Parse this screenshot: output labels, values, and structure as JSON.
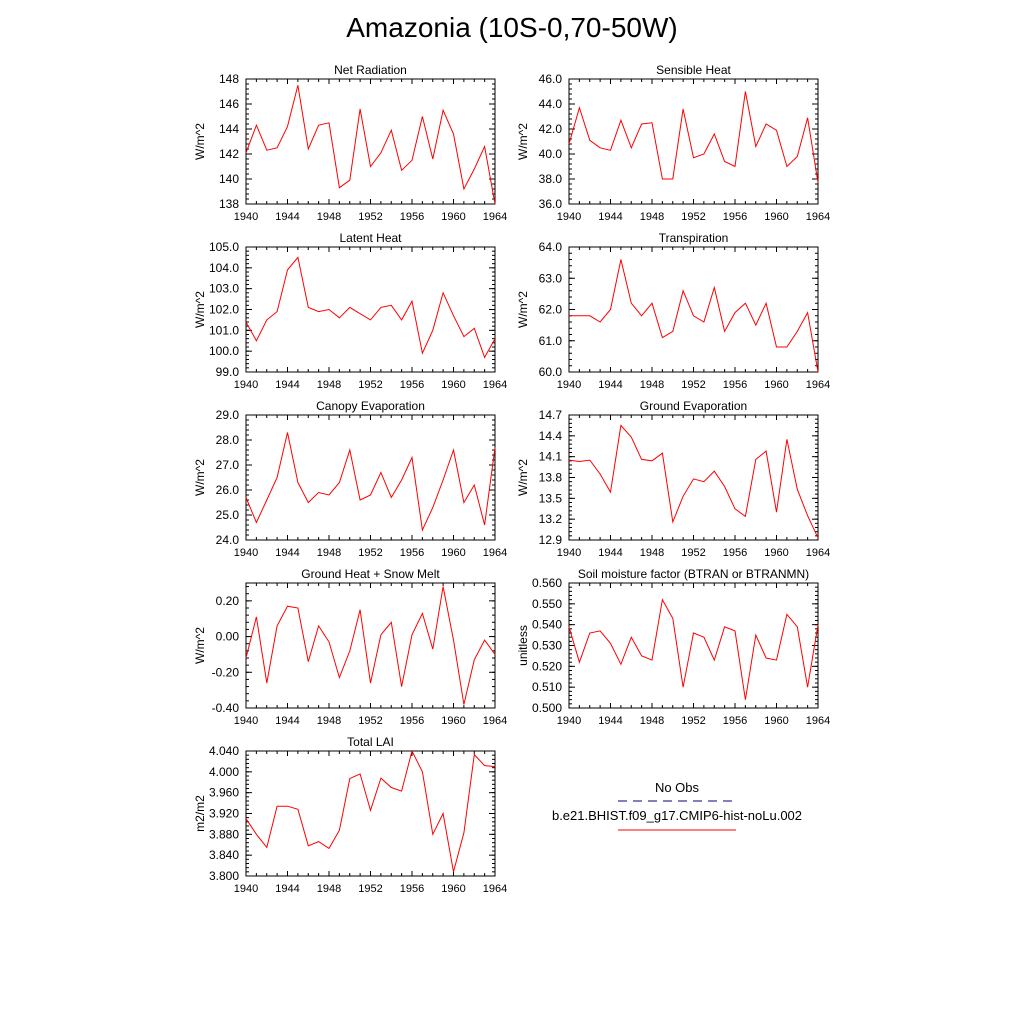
{
  "title": "Amazonia (10S-0,70-50W)",
  "legend": {
    "entries": [
      {
        "label": "No Obs",
        "line_color": "#000080",
        "dash": true
      },
      {
        "label": "b.e21.BHIST.f09_g17.CMIP6-hist-noLu.002",
        "line_color": "#ff0000",
        "dash": false
      }
    ]
  },
  "colors": {
    "series": "#ff0000",
    "axis": "#000000"
  },
  "chart_data": [
    {
      "type": "line",
      "title": "Net Radiation",
      "ylabel": "W/m^2",
      "xlabel": "",
      "xlim": [
        1940,
        1964
      ],
      "ylim": [
        138,
        148
      ],
      "x_ticks": [
        1940,
        1944,
        1948,
        1952,
        1956,
        1960,
        1964
      ],
      "y_ticks": [
        "138",
        "140",
        "142",
        "144",
        "146",
        "148"
      ],
      "y_tick_values": [
        138,
        140,
        142,
        144,
        146,
        148
      ],
      "x": [
        1940,
        1941,
        1942,
        1943,
        1944,
        1945,
        1946,
        1947,
        1948,
        1949,
        1950,
        1951,
        1952,
        1953,
        1954,
        1955,
        1956,
        1957,
        1958,
        1959,
        1960,
        1961,
        1962,
        1963,
        1964
      ],
      "series": [
        {
          "name": "b.e21.BHIST.f09_g17.CMIP6-hist-noLu.002",
          "values": [
            142.1,
            144.3,
            142.3,
            142.5,
            144.2,
            147.5,
            142.4,
            144.3,
            144.5,
            139.3,
            139.9,
            145.6,
            141.0,
            142.1,
            143.9,
            140.7,
            141.5,
            145.0,
            141.6,
            145.5,
            143.6,
            139.2,
            140.8,
            142.6,
            138.0
          ]
        }
      ]
    },
    {
      "type": "line",
      "title": "Sensible Heat",
      "ylabel": "W/m^2",
      "xlabel": "",
      "xlim": [
        1940,
        1964
      ],
      "ylim": [
        36.0,
        46.0
      ],
      "x_ticks": [
        1940,
        1944,
        1948,
        1952,
        1956,
        1960,
        1964
      ],
      "y_ticks": [
        "36.0",
        "38.0",
        "40.0",
        "42.0",
        "44.0",
        "46.0"
      ],
      "y_tick_values": [
        36,
        38,
        40,
        42,
        44,
        46
      ],
      "x": [
        1940,
        1941,
        1942,
        1943,
        1944,
        1945,
        1946,
        1947,
        1948,
        1949,
        1950,
        1951,
        1952,
        1953,
        1954,
        1955,
        1956,
        1957,
        1958,
        1959,
        1960,
        1961,
        1962,
        1963,
        1964
      ],
      "series": [
        {
          "name": "b.e21.BHIST.f09_g17.CMIP6-hist-noLu.002",
          "values": [
            40.8,
            43.7,
            41.1,
            40.5,
            40.3,
            42.7,
            40.5,
            42.4,
            42.5,
            38.0,
            38.0,
            43.6,
            39.7,
            40.0,
            41.6,
            39.4,
            39.0,
            45.0,
            40.6,
            42.4,
            41.9,
            39.0,
            39.8,
            42.9,
            37.7
          ]
        }
      ]
    },
    {
      "type": "line",
      "title": "Latent Heat",
      "ylabel": "W/m^2",
      "xlabel": "",
      "xlim": [
        1940,
        1964
      ],
      "ylim": [
        99.0,
        105.0
      ],
      "x_ticks": [
        1940,
        1944,
        1948,
        1952,
        1956,
        1960,
        1964
      ],
      "y_ticks": [
        "99.0",
        "100.0",
        "101.0",
        "102.0",
        "103.0",
        "104.0",
        "105.0"
      ],
      "y_tick_values": [
        99,
        100,
        101,
        102,
        103,
        104,
        105
      ],
      "x": [
        1940,
        1941,
        1942,
        1943,
        1944,
        1945,
        1946,
        1947,
        1948,
        1949,
        1950,
        1951,
        1952,
        1953,
        1954,
        1955,
        1956,
        1957,
        1958,
        1959,
        1960,
        1961,
        1962,
        1963,
        1964
      ],
      "series": [
        {
          "name": "b.e21.BHIST.f09_g17.CMIP6-hist-noLu.002",
          "values": [
            101.4,
            100.5,
            101.5,
            101.9,
            103.9,
            104.5,
            102.1,
            101.9,
            102.0,
            101.6,
            102.1,
            101.8,
            101.5,
            102.1,
            102.2,
            101.5,
            102.4,
            99.9,
            101.0,
            102.8,
            101.7,
            100.7,
            101.1,
            99.7,
            100.6
          ]
        }
      ]
    },
    {
      "type": "line",
      "title": "Transpiration",
      "ylabel": "W/m^2",
      "xlabel": "",
      "xlim": [
        1940,
        1964
      ],
      "ylim": [
        60.0,
        64.0
      ],
      "x_ticks": [
        1940,
        1944,
        1948,
        1952,
        1956,
        1960,
        1964
      ],
      "y_ticks": [
        "60.0",
        "61.0",
        "62.0",
        "63.0",
        "64.0"
      ],
      "y_tick_values": [
        60,
        61,
        62,
        63,
        64
      ],
      "x": [
        1940,
        1941,
        1942,
        1943,
        1944,
        1945,
        1946,
        1947,
        1948,
        1949,
        1950,
        1951,
        1952,
        1953,
        1954,
        1955,
        1956,
        1957,
        1958,
        1959,
        1960,
        1961,
        1962,
        1963,
        1964
      ],
      "series": [
        {
          "name": "b.e21.BHIST.f09_g17.CMIP6-hist-noLu.002",
          "values": [
            61.8,
            61.8,
            61.8,
            61.6,
            62.0,
            63.6,
            62.2,
            61.8,
            62.2,
            61.1,
            61.3,
            62.6,
            61.8,
            61.6,
            62.7,
            61.3,
            61.9,
            62.2,
            61.5,
            62.2,
            60.8,
            60.8,
            61.3,
            61.9,
            60.0
          ]
        }
      ]
    },
    {
      "type": "line",
      "title": "Canopy Evaporation",
      "ylabel": "W/m^2",
      "xlabel": "",
      "xlim": [
        1940,
        1964
      ],
      "ylim": [
        24.0,
        29.0
      ],
      "x_ticks": [
        1940,
        1944,
        1948,
        1952,
        1956,
        1960,
        1964
      ],
      "y_ticks": [
        "24.0",
        "25.0",
        "26.0",
        "27.0",
        "28.0",
        "29.0"
      ],
      "y_tick_values": [
        24,
        25,
        26,
        27,
        28,
        29
      ],
      "x": [
        1940,
        1941,
        1942,
        1943,
        1944,
        1945,
        1946,
        1947,
        1948,
        1949,
        1950,
        1951,
        1952,
        1953,
        1954,
        1955,
        1956,
        1957,
        1958,
        1959,
        1960,
        1961,
        1962,
        1963,
        1964
      ],
      "series": [
        {
          "name": "b.e21.BHIST.f09_g17.CMIP6-hist-noLu.002",
          "values": [
            25.7,
            24.7,
            25.6,
            26.5,
            28.3,
            26.3,
            25.5,
            25.9,
            25.8,
            26.3,
            27.6,
            25.6,
            25.8,
            26.7,
            25.7,
            26.4,
            27.3,
            24.4,
            25.3,
            26.4,
            27.6,
            25.5,
            26.2,
            24.6,
            27.7
          ]
        }
      ]
    },
    {
      "type": "line",
      "title": "Ground Evaporation",
      "ylabel": "W/m^2",
      "xlabel": "",
      "xlim": [
        1940,
        1964
      ],
      "ylim": [
        12.9,
        14.7
      ],
      "x_ticks": [
        1940,
        1944,
        1948,
        1952,
        1956,
        1960,
        1964
      ],
      "y_ticks": [
        "12.9",
        "13.2",
        "13.5",
        "13.8",
        "14.1",
        "14.4",
        "14.7"
      ],
      "y_tick_values": [
        12.9,
        13.2,
        13.5,
        13.8,
        14.1,
        14.4,
        14.7
      ],
      "x": [
        1940,
        1941,
        1942,
        1943,
        1944,
        1945,
        1946,
        1947,
        1948,
        1949,
        1950,
        1951,
        1952,
        1953,
        1954,
        1955,
        1956,
        1957,
        1958,
        1959,
        1960,
        1961,
        1962,
        1963,
        1964
      ],
      "series": [
        {
          "name": "b.e21.BHIST.f09_g17.CMIP6-hist-noLu.002",
          "values": [
            14.05,
            14.03,
            14.05,
            13.85,
            13.59,
            14.55,
            14.38,
            14.06,
            14.04,
            14.15,
            13.16,
            13.53,
            13.78,
            13.74,
            13.89,
            13.67,
            13.35,
            13.24,
            14.06,
            14.18,
            13.3,
            14.35,
            13.63,
            13.25,
            12.93
          ]
        }
      ]
    },
    {
      "type": "line",
      "title": "Ground Heat + Snow Melt",
      "ylabel": "W/m^2",
      "xlabel": "",
      "xlim": [
        1940,
        1964
      ],
      "ylim": [
        -0.4,
        0.3
      ],
      "x_ticks": [
        1940,
        1944,
        1948,
        1952,
        1956,
        1960,
        1964
      ],
      "y_ticks": [
        "-0.40",
        "-0.20",
        "0.00",
        "0.20"
      ],
      "y_tick_values": [
        -0.4,
        -0.2,
        0.0,
        0.2
      ],
      "x": [
        1940,
        1941,
        1942,
        1943,
        1944,
        1945,
        1946,
        1947,
        1948,
        1949,
        1950,
        1951,
        1952,
        1953,
        1954,
        1955,
        1956,
        1957,
        1958,
        1959,
        1960,
        1961,
        1962,
        1963,
        1964
      ],
      "series": [
        {
          "name": "b.e21.BHIST.f09_g17.CMIP6-hist-noLu.002",
          "values": [
            -0.12,
            0.11,
            -0.26,
            0.06,
            0.17,
            0.16,
            -0.14,
            0.06,
            -0.03,
            -0.23,
            -0.08,
            0.15,
            -0.26,
            0.01,
            0.08,
            -0.28,
            0.01,
            0.13,
            -0.07,
            0.28,
            -0.02,
            -0.38,
            -0.13,
            -0.02,
            -0.1
          ]
        }
      ]
    },
    {
      "type": "line",
      "title": "Soil moisture factor (BTRAN or BTRANMN)",
      "ylabel": "unitless",
      "xlabel": "",
      "xlim": [
        1940,
        1964
      ],
      "ylim": [
        0.5,
        0.56
      ],
      "x_ticks": [
        1940,
        1944,
        1948,
        1952,
        1956,
        1960,
        1964
      ],
      "y_ticks": [
        "0.500",
        "0.510",
        "0.520",
        "0.530",
        "0.540",
        "0.550",
        "0.560"
      ],
      "y_tick_values": [
        0.5,
        0.51,
        0.52,
        0.53,
        0.54,
        0.55,
        0.56
      ],
      "x": [
        1940,
        1941,
        1942,
        1943,
        1944,
        1945,
        1946,
        1947,
        1948,
        1949,
        1950,
        1951,
        1952,
        1953,
        1954,
        1955,
        1956,
        1957,
        1958,
        1959,
        1960,
        1961,
        1962,
        1963,
        1964
      ],
      "series": [
        {
          "name": "b.e21.BHIST.f09_g17.CMIP6-hist-noLu.002",
          "values": [
            0.539,
            0.522,
            0.536,
            0.537,
            0.531,
            0.521,
            0.534,
            0.525,
            0.523,
            0.552,
            0.543,
            0.51,
            0.536,
            0.534,
            0.523,
            0.539,
            0.537,
            0.504,
            0.535,
            0.524,
            0.523,
            0.545,
            0.539,
            0.51,
            0.54
          ]
        }
      ]
    },
    {
      "type": "line",
      "title": "Total LAI",
      "ylabel": "m2/m2",
      "xlabel": "",
      "xlim": [
        1940,
        1964
      ],
      "ylim": [
        3.8,
        4.04
      ],
      "x_ticks": [
        1940,
        1944,
        1948,
        1952,
        1956,
        1960,
        1964
      ],
      "y_ticks": [
        "3.800",
        "3.840",
        "3.880",
        "3.920",
        "3.960",
        "4.000",
        "4.040"
      ],
      "y_tick_values": [
        3.8,
        3.84,
        3.88,
        3.92,
        3.96,
        4.0,
        4.04
      ],
      "x": [
        1940,
        1941,
        1942,
        1943,
        1944,
        1945,
        1946,
        1947,
        1948,
        1949,
        1950,
        1951,
        1952,
        1953,
        1954,
        1955,
        1956,
        1957,
        1958,
        1959,
        1960,
        1961,
        1962,
        1963,
        1964
      ],
      "series": [
        {
          "name": "b.e21.BHIST.f09_g17.CMIP6-hist-noLu.002",
          "values": [
            3.91,
            3.88,
            3.855,
            3.934,
            3.934,
            3.928,
            3.858,
            3.866,
            3.853,
            3.888,
            3.987,
            3.996,
            3.926,
            3.988,
            3.97,
            3.963,
            4.04,
            4.0,
            3.88,
            3.92,
            3.808,
            3.883,
            4.033,
            4.012,
            4.01
          ]
        }
      ]
    }
  ]
}
